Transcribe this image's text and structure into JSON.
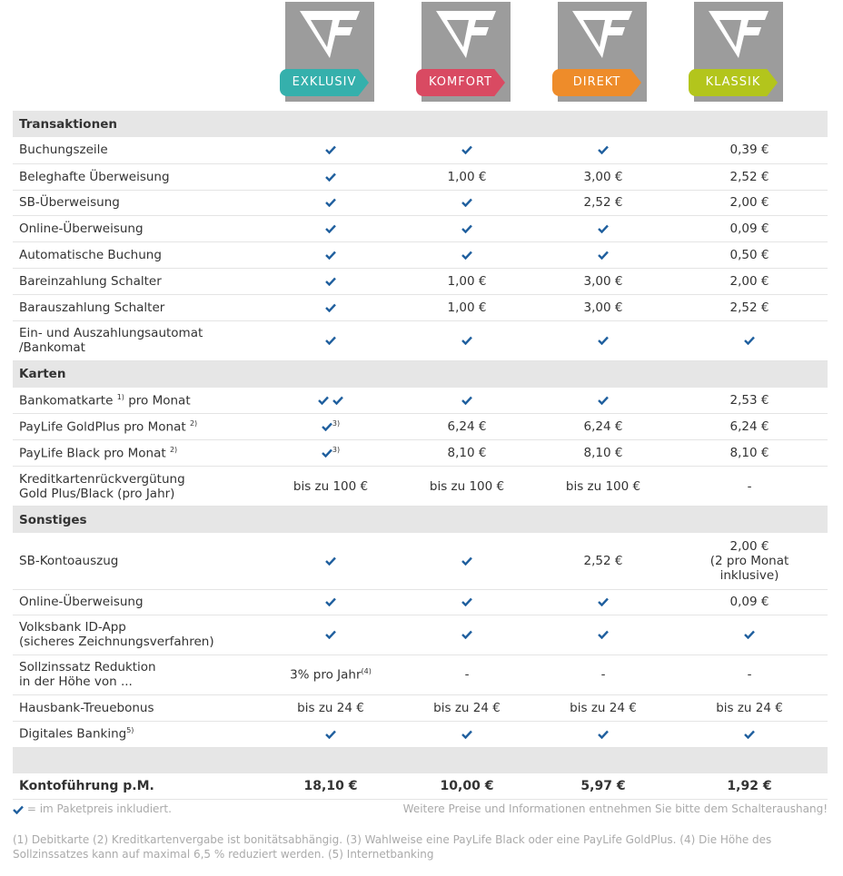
{
  "packages": [
    {
      "label": "EXKLUSIV",
      "color": "#35b0ac"
    },
    {
      "label": "KOMFORT",
      "color": "#d94a62"
    },
    {
      "label": "DIREKT",
      "color": "#ee8c2a"
    },
    {
      "label": "KLASSIK",
      "color": "#b3c51c"
    }
  ],
  "sections": {
    "transaktionen": "Transaktionen",
    "karten": "Karten",
    "sonstiges": "Sonstiges"
  },
  "rows": {
    "buchungszeile": {
      "label": "Buchungszeile",
      "v4": "0,39 €"
    },
    "beleghafte": {
      "label": "Beleghafte Überweisung",
      "v2": "1,00 €",
      "v3": "3,00 €",
      "v4": "2,52 €"
    },
    "sb_ueberweisung": {
      "label": "SB-Überweisung",
      "v3": "2,52 €",
      "v4": "2,00 €"
    },
    "online_ueberweisung": {
      "label": "Online-Überweisung",
      "v4": "0,09 €"
    },
    "automatische_buchung": {
      "label": "Automatische Buchung",
      "v4": "0,50 €"
    },
    "bareinzahlung": {
      "label": "Bareinzahlung Schalter",
      "v2": "1,00 €",
      "v3": "3,00 €",
      "v4": "2,00 €"
    },
    "barauszahlung": {
      "label": "Barauszahlung Schalter",
      "v2": "1,00 €",
      "v3": "3,00 €",
      "v4": "2,52 €"
    },
    "automat": {
      "label1": "Ein- und Auszahlungsautomat",
      "label2": "/Bankomat"
    },
    "bankomatkarte": {
      "label": "Bankomatkarte",
      "note": "1)",
      "label_suffix": "pro Monat",
      "v4": "2,53 €"
    },
    "goldplus": {
      "label": "PayLife GoldPlus pro Monat",
      "note": "2)",
      "v1_note": "3)",
      "v2": "6,24 €",
      "v3": "6,24 €",
      "v4": "6,24 €"
    },
    "black": {
      "label": "PayLife Black pro Monat",
      "note": "2)",
      "v1_note": "3)",
      "v2": "8,10 €",
      "v3": "8,10 €",
      "v4": "8,10 €"
    },
    "rueckverguetung": {
      "label1": "Kreditkartenrückvergütung",
      "label2": "Gold Plus/Black (pro Jahr)",
      "v1": "bis zu 100 €",
      "v2": "bis zu 100 €",
      "v3": "bis zu 100 €",
      "v4": "-"
    },
    "sb_kontoauszug": {
      "label": "SB-Kontoauszug",
      "v3": "2,52 €",
      "v4_1": "2,00 €",
      "v4_2": "(2 pro Monat",
      "v4_3": "inklusive)"
    },
    "online_ueberweisung2": {
      "label": "Online-Überweisung",
      "v4": "0,09 €"
    },
    "id_app": {
      "label1": "Volksbank ID-App",
      "label2": "(sicheres Zeichnungsverfahren)"
    },
    "sollzins": {
      "label1": "Sollzinssatz Reduktion",
      "label2": "in der Höhe von ...",
      "v1": "3% pro Jahr",
      "v1_note": "(4)",
      "v2": "-",
      "v3": "-",
      "v4": "-"
    },
    "treuebonus": {
      "label": "Hausbank-Treuebonus",
      "v1": "bis zu 24 €",
      "v2": "bis zu 24 €",
      "v3": "bis zu 24 €",
      "v4": "bis zu 24 €"
    },
    "digital": {
      "label": "Digitales Banking",
      "note": "5)"
    }
  },
  "total": {
    "label": "Kontoführung p.M.",
    "v1": "18,10 €",
    "v2": "10,00 €",
    "v3": "5,97 €",
    "v4": "1,92 €"
  },
  "legend": {
    "left": "= im Paketpreis inkludiert.",
    "right": "Weitere Preise und Informationen entnehmen Sie bitte dem Schalteraushang!"
  },
  "footnote": "(1) Debitkarte (2) Kreditkartenvergabe ist bonitätsabhängig. (3) Wahlweise eine PayLife Black oder eine PayLife GoldPlus. (4) Die Höhe des Sollzinssatzes kann auf maximal 6,5 % reduziert werden. (5) Internetbanking",
  "colors": {
    "check": "#1f5f9e",
    "logo_gray": "#9c9c9c"
  }
}
